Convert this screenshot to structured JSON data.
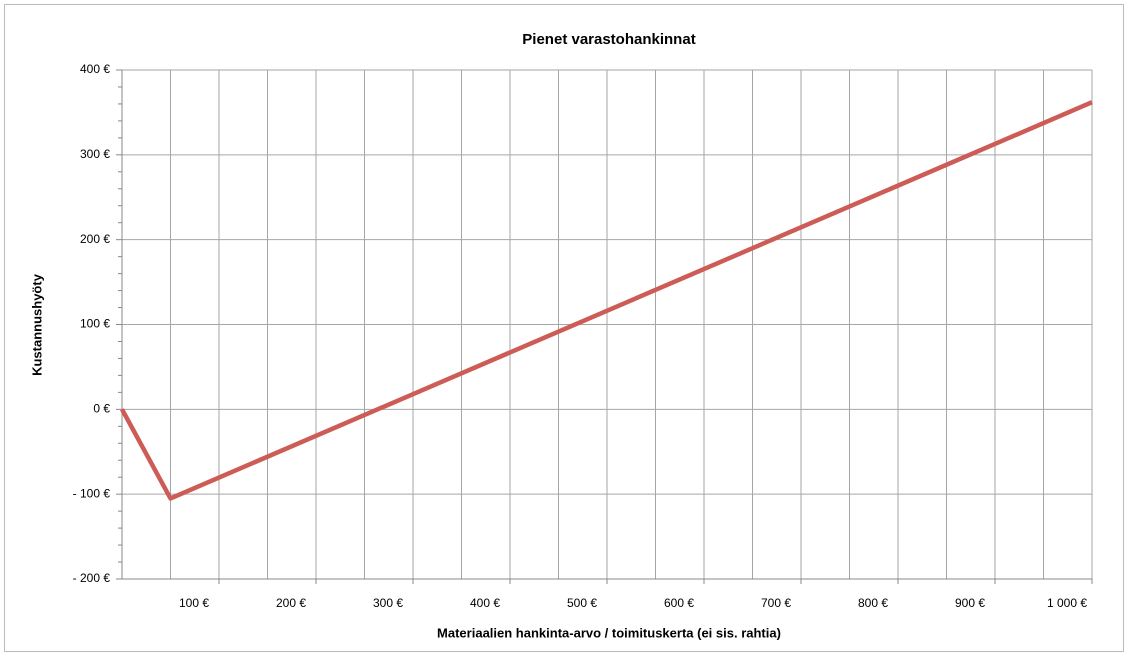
{
  "chart_data": {
    "type": "line",
    "title": "Pienet varastohankinnat",
    "x_label": "Materiaalien hankinta-arvo / toimituskerta (ei sis. rahtia)",
    "y_label": "Kustannushyöty",
    "x": [
      0,
      50,
      1000
    ],
    "series": [
      {
        "name": "Kustannushyöty",
        "color": "#cd5c57",
        "values": [
          0,
          -105,
          362
        ]
      }
    ],
    "xlim": [
      0,
      1000
    ],
    "ylim": [
      -200,
      400
    ],
    "xticks": [
      {
        "value": 100,
        "label": "100 €"
      },
      {
        "value": 200,
        "label": "200 €"
      },
      {
        "value": 300,
        "label": "300 €"
      },
      {
        "value": 400,
        "label": "400 €"
      },
      {
        "value": 500,
        "label": "500 €"
      },
      {
        "value": 600,
        "label": "600 €"
      },
      {
        "value": 700,
        "label": "700 €"
      },
      {
        "value": 800,
        "label": "800 €"
      },
      {
        "value": 900,
        "label": "900 €"
      },
      {
        "value": 1000,
        "label": "1 000 €"
      }
    ],
    "x_grid": [
      50,
      100,
      150,
      200,
      250,
      300,
      350,
      400,
      450,
      500,
      550,
      600,
      650,
      700,
      750,
      800,
      850,
      900,
      950,
      1000
    ],
    "yticks": [
      {
        "value": -200,
        "label": "- 200 €"
      },
      {
        "value": -100,
        "label": "- 100 €"
      },
      {
        "value": 0,
        "label": "0 €"
      },
      {
        "value": 100,
        "label": "100 €"
      },
      {
        "value": 200,
        "label": "200 €"
      },
      {
        "value": 300,
        "label": "300 €"
      },
      {
        "value": 400,
        "label": "400 €"
      }
    ],
    "y_minor_ticks": [
      -180,
      -160,
      -140,
      -120,
      -80,
      -60,
      -40,
      -20,
      20,
      40,
      60,
      80,
      120,
      140,
      160,
      180,
      220,
      240,
      260,
      280,
      320,
      340,
      360,
      380
    ],
    "grid": true
  }
}
